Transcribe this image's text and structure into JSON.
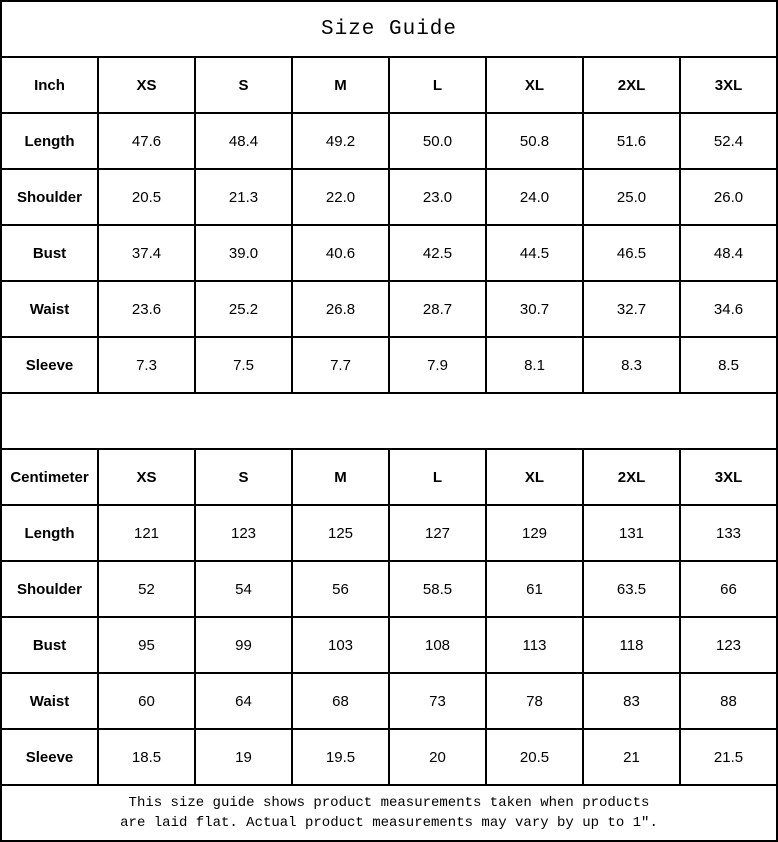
{
  "title": "Size Guide",
  "colors": {
    "border": "#000000",
    "background": "#ffffff",
    "text": "#000000"
  },
  "tables": [
    {
      "unit_label": "Inch",
      "size_headers": [
        "XS",
        "S",
        "M",
        "L",
        "XL",
        "2XL",
        "3XL"
      ],
      "rows": [
        {
          "label": "Length",
          "values": [
            "47.6",
            "48.4",
            "49.2",
            "50.0",
            "50.8",
            "51.6",
            "52.4"
          ]
        },
        {
          "label": "Shoulder",
          "values": [
            "20.5",
            "21.3",
            "22.0",
            "23.0",
            "24.0",
            "25.0",
            "26.0"
          ]
        },
        {
          "label": "Bust",
          "values": [
            "37.4",
            "39.0",
            "40.6",
            "42.5",
            "44.5",
            "46.5",
            "48.4"
          ]
        },
        {
          "label": "Waist",
          "values": [
            "23.6",
            "25.2",
            "26.8",
            "28.7",
            "30.7",
            "32.7",
            "34.6"
          ]
        },
        {
          "label": "Sleeve",
          "values": [
            "7.3",
            "7.5",
            "7.7",
            "7.9",
            "8.1",
            "8.3",
            "8.5"
          ]
        }
      ]
    },
    {
      "unit_label": "Centimeter",
      "size_headers": [
        "XS",
        "S",
        "M",
        "L",
        "XL",
        "2XL",
        "3XL"
      ],
      "rows": [
        {
          "label": "Length",
          "values": [
            "121",
            "123",
            "125",
            "127",
            "129",
            "131",
            "133"
          ]
        },
        {
          "label": "Shoulder",
          "values": [
            "52",
            "54",
            "56",
            "58.5",
            "61",
            "63.5",
            "66"
          ]
        },
        {
          "label": "Bust",
          "values": [
            "95",
            "99",
            "103",
            "108",
            "113",
            "118",
            "123"
          ]
        },
        {
          "label": "Waist",
          "values": [
            "60",
            "64",
            "68",
            "73",
            "78",
            "83",
            "88"
          ]
        },
        {
          "label": "Sleeve",
          "values": [
            "18.5",
            "19",
            "19.5",
            "20",
            "20.5",
            "21",
            "21.5"
          ]
        }
      ]
    }
  ],
  "footer": {
    "line1": "This size guide shows product measurements taken when products",
    "line2": "are laid flat. Actual product measurements may vary by up to 1″."
  }
}
